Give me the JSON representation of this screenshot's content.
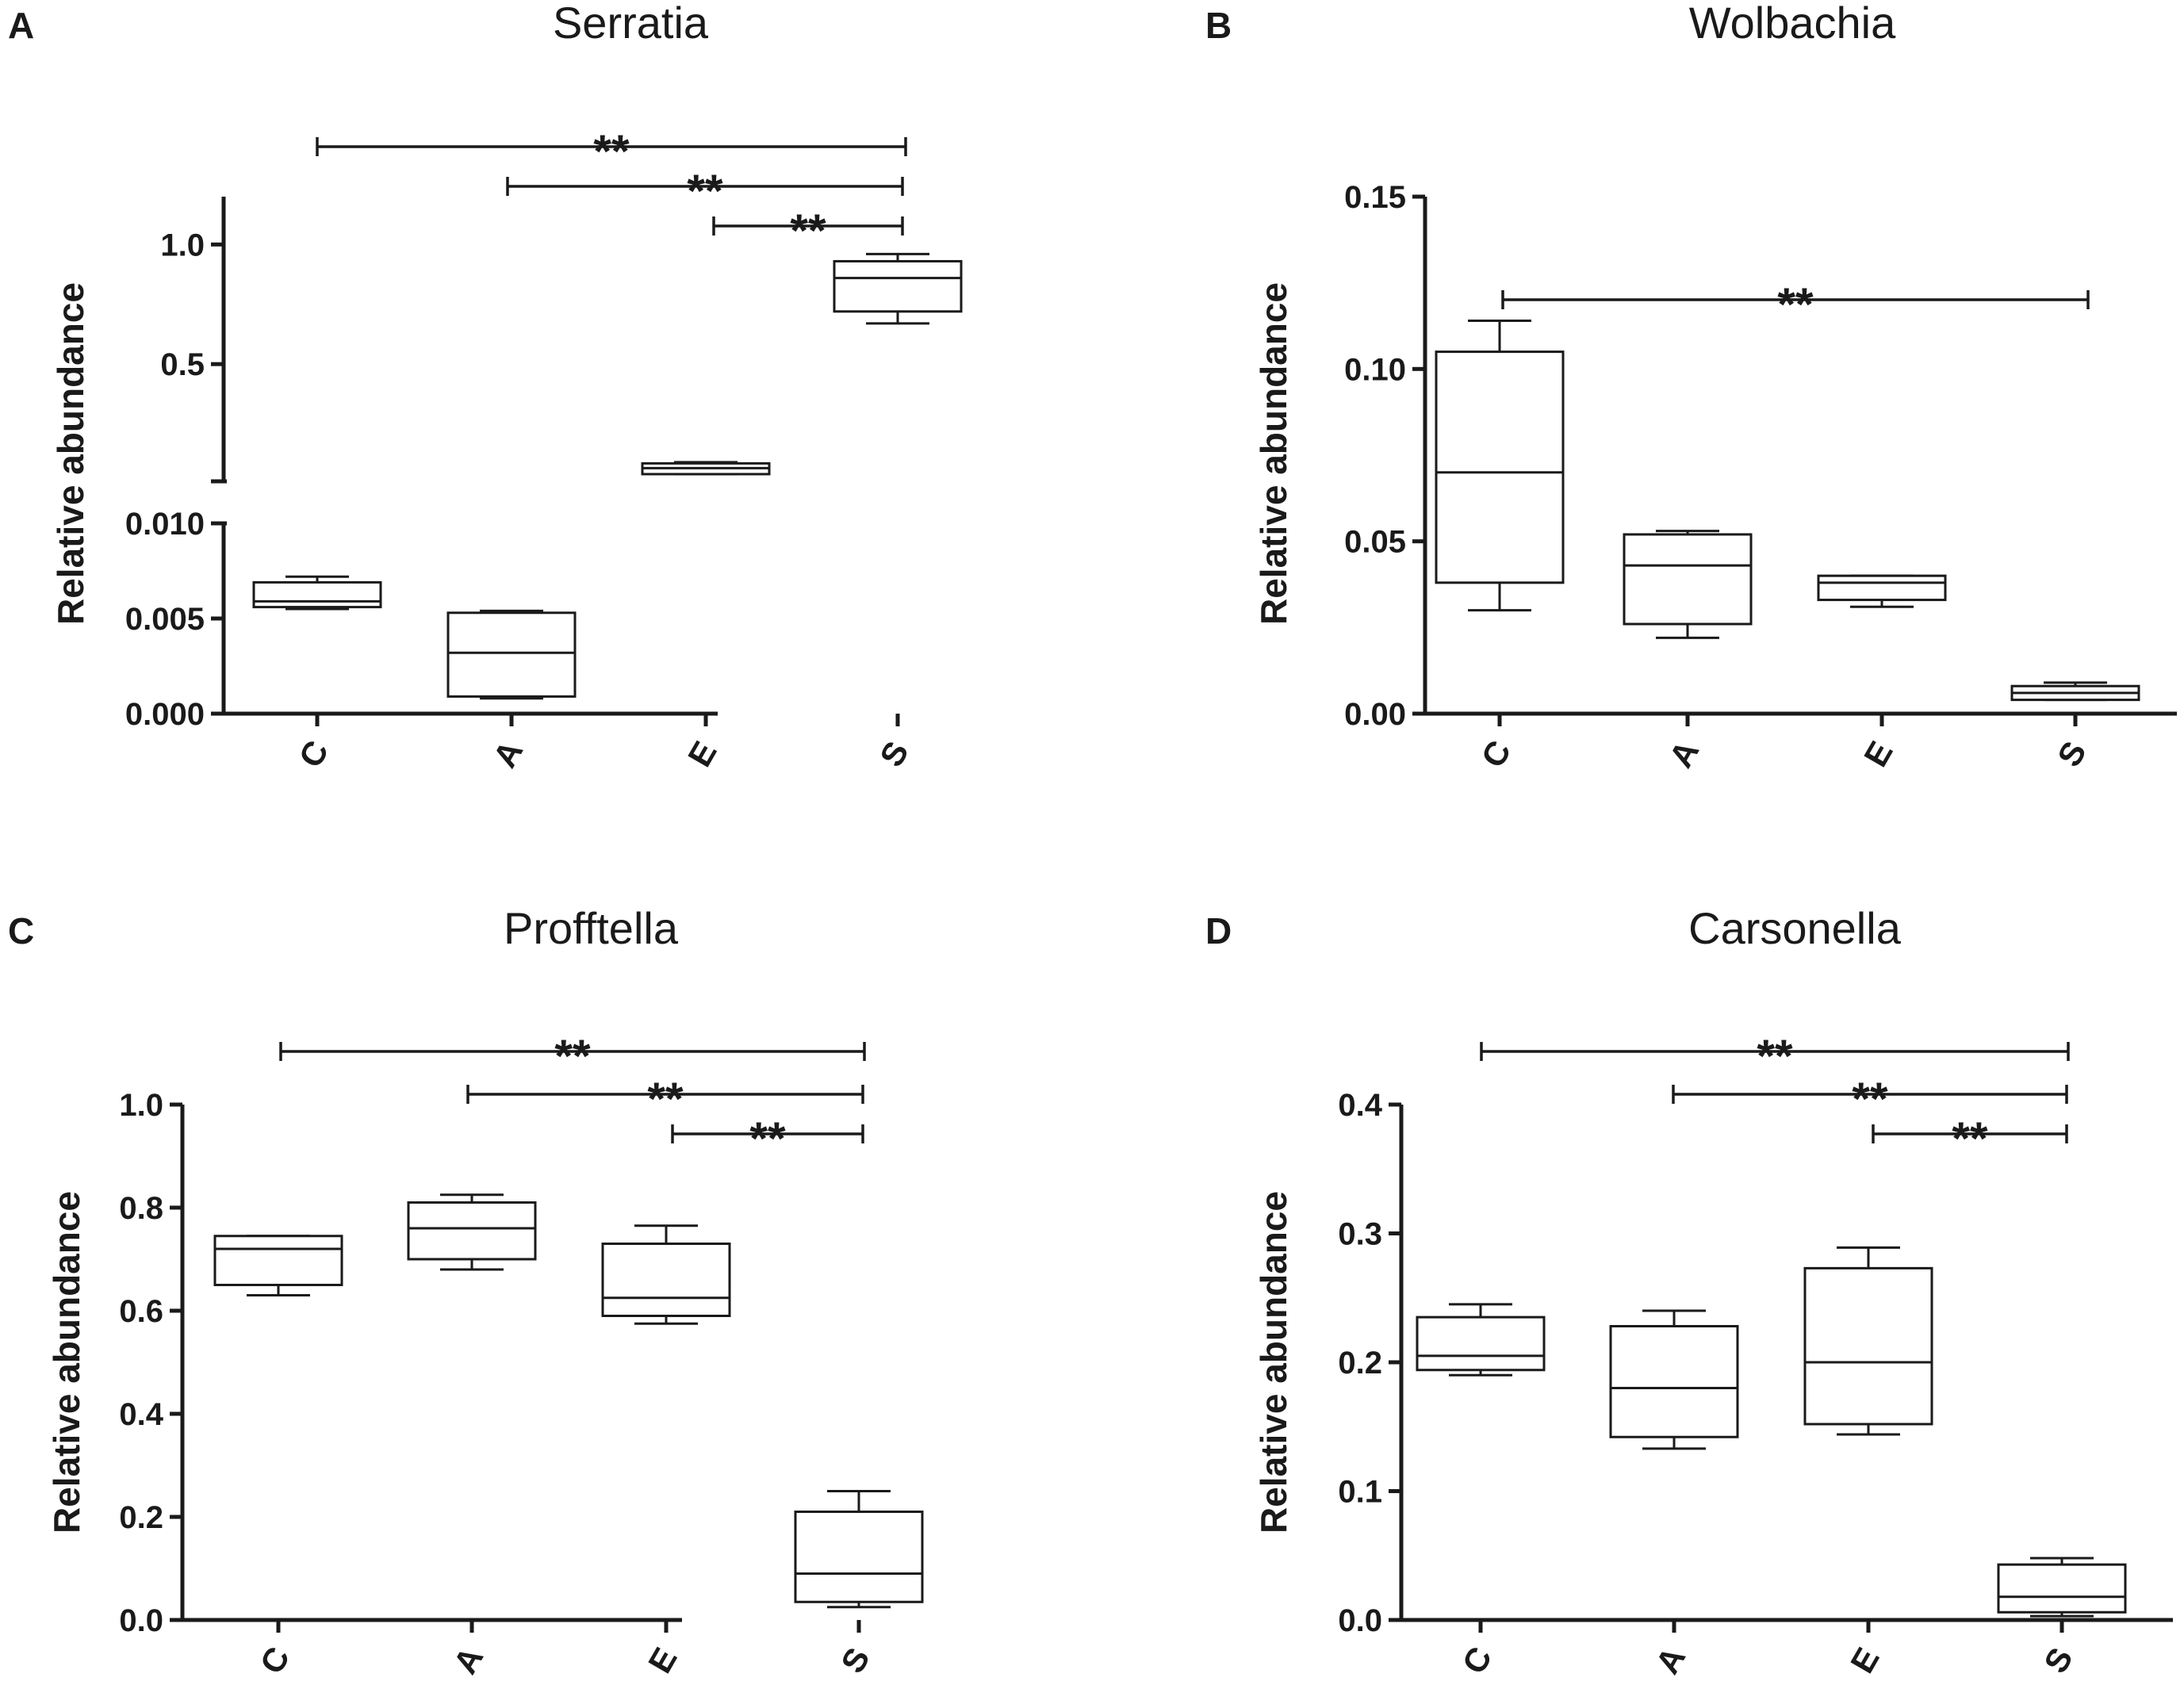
{
  "chart_data": [
    {
      "type": "box",
      "panel": "A",
      "title": "Serratia",
      "ylabel": "Relative abundance",
      "categories": [
        "C",
        "A",
        "E",
        "S"
      ],
      "axis_break": true,
      "y_lower": {
        "range": [
          0.0,
          0.01
        ],
        "ticks": [
          0.0,
          0.005,
          0.01
        ],
        "tick_labels": [
          "0.000",
          "0.005",
          "0.010"
        ]
      },
      "y_upper": {
        "range": [
          0.01,
          1.2
        ],
        "ticks": [
          0.5,
          1.0
        ],
        "tick_labels": [
          "0.5",
          "1.0"
        ]
      },
      "boxes": [
        {
          "category": "C",
          "min": 0.0055,
          "q1": 0.0056,
          "median": 0.0059,
          "q3": 0.0069,
          "max": 0.0072
        },
        {
          "category": "A",
          "min": 0.0008,
          "q1": 0.0009,
          "median": 0.0032,
          "q3": 0.0053,
          "max": 0.0054
        },
        {
          "category": "E",
          "min": 0.04,
          "q1": 0.04,
          "median": 0.065,
          "q3": 0.085,
          "max": 0.09
        },
        {
          "category": "S",
          "min": 0.67,
          "q1": 0.72,
          "median": 0.86,
          "q3": 0.93,
          "max": 0.96
        }
      ],
      "comparisons": [
        {
          "from": "C",
          "to": "S",
          "label": "**"
        },
        {
          "from": "A",
          "to": "S",
          "label": "**"
        },
        {
          "from": "E",
          "to": "S",
          "label": "**"
        }
      ]
    },
    {
      "type": "box",
      "panel": "B",
      "title": "Wolbachia",
      "ylabel": "Relative abundance",
      "categories": [
        "C",
        "A",
        "E",
        "S"
      ],
      "ylim": [
        0.0,
        0.15
      ],
      "yticks": [
        0.0,
        0.05,
        0.1,
        0.15
      ],
      "ytick_labels": [
        "0.00",
        "0.05",
        "0.10",
        "0.15"
      ],
      "boxes": [
        {
          "category": "C",
          "min": 0.03,
          "q1": 0.038,
          "median": 0.07,
          "q3": 0.105,
          "max": 0.114
        },
        {
          "category": "A",
          "min": 0.022,
          "q1": 0.026,
          "median": 0.043,
          "q3": 0.052,
          "max": 0.053
        },
        {
          "category": "E",
          "min": 0.031,
          "q1": 0.033,
          "median": 0.038,
          "q3": 0.04,
          "max": 0.04
        },
        {
          "category": "S",
          "min": 0.004,
          "q1": 0.004,
          "median": 0.006,
          "q3": 0.008,
          "max": 0.009
        }
      ],
      "comparisons": [
        {
          "from": "C",
          "to": "S",
          "label": "**"
        }
      ]
    },
    {
      "type": "box",
      "panel": "C",
      "title": "Profftella",
      "ylabel": "Relative abundance",
      "categories": [
        "C",
        "A",
        "E",
        "S"
      ],
      "ylim": [
        0.0,
        1.0
      ],
      "yticks": [
        0.0,
        0.2,
        0.4,
        0.6,
        0.8,
        1.0
      ],
      "ytick_labels": [
        "0.0",
        "0.2",
        "0.4",
        "0.6",
        "0.8",
        "1.0"
      ],
      "boxes": [
        {
          "category": "C",
          "min": 0.63,
          "q1": 0.65,
          "median": 0.72,
          "q3": 0.745,
          "max": 0.745
        },
        {
          "category": "A",
          "min": 0.68,
          "q1": 0.7,
          "median": 0.76,
          "q3": 0.81,
          "max": 0.825
        },
        {
          "category": "E",
          "min": 0.575,
          "q1": 0.59,
          "median": 0.625,
          "q3": 0.73,
          "max": 0.765
        },
        {
          "category": "S",
          "min": 0.025,
          "q1": 0.035,
          "median": 0.09,
          "q3": 0.21,
          "max": 0.25
        }
      ],
      "comparisons": [
        {
          "from": "C",
          "to": "S",
          "label": "**"
        },
        {
          "from": "A",
          "to": "S",
          "label": "**"
        },
        {
          "from": "E",
          "to": "S",
          "label": "**"
        }
      ]
    },
    {
      "type": "box",
      "panel": "D",
      "title": "Carsonella",
      "ylabel": "Relative abundance",
      "categories": [
        "C",
        "A",
        "E",
        "S"
      ],
      "ylim": [
        0.0,
        0.4
      ],
      "yticks": [
        0.0,
        0.1,
        0.2,
        0.3,
        0.4
      ],
      "ytick_labels": [
        "0.0",
        "0.1",
        "0.2",
        "0.3",
        "0.4"
      ],
      "boxes": [
        {
          "category": "C",
          "min": 0.19,
          "q1": 0.194,
          "median": 0.205,
          "q3": 0.235,
          "max": 0.245
        },
        {
          "category": "A",
          "min": 0.133,
          "q1": 0.142,
          "median": 0.18,
          "q3": 0.228,
          "max": 0.24
        },
        {
          "category": "E",
          "min": 0.144,
          "q1": 0.152,
          "median": 0.2,
          "q3": 0.273,
          "max": 0.289
        },
        {
          "category": "S",
          "min": 0.003,
          "q1": 0.006,
          "median": 0.018,
          "q3": 0.043,
          "max": 0.048
        }
      ],
      "comparisons": [
        {
          "from": "C",
          "to": "S",
          "label": "**"
        },
        {
          "from": "A",
          "to": "S",
          "label": "**"
        },
        {
          "from": "E",
          "to": "S",
          "label": "**"
        }
      ]
    }
  ]
}
